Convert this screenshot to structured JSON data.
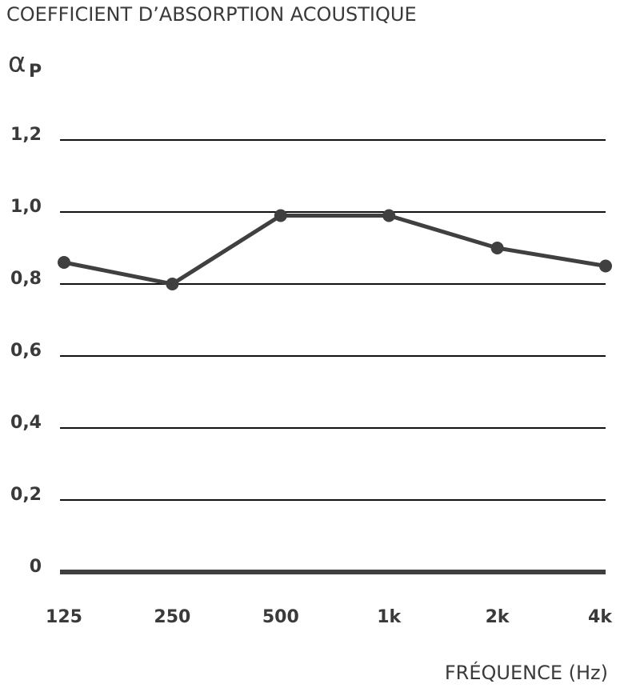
{
  "chart_data": {
    "type": "line",
    "title": "COEFFICIENT D’ABSORPTION ACOUSTIQUE",
    "y_label": "α",
    "y_label_subscript": "P",
    "x_label": "FRÉQUENCE (Hz)",
    "categories": [
      "125",
      "250",
      "500",
      "1k",
      "2k",
      "4k"
    ],
    "values": [
      0.86,
      0.8,
      0.99,
      0.99,
      0.9,
      0.85
    ],
    "color": "#404040",
    "ylim": [
      0,
      1.2
    ],
    "yticks": [
      0,
      {
        "value": 0.2,
        "label": "0,2"
      },
      {
        "value": 0.4,
        "label": "0,4"
      },
      {
        "value": 0.6,
        "label": "0,6"
      },
      {
        "value": 0.8,
        "label": "0,8"
      },
      {
        "value": 1,
        "label": "1,0"
      },
      {
        "value": 1.2,
        "label": "1,2"
      }
    ],
    "grid": true
  }
}
